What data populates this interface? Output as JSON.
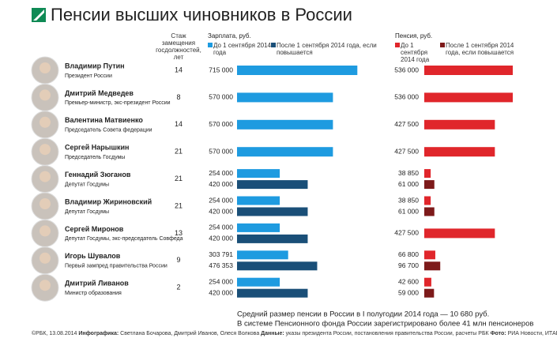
{
  "title": "Пенсии высших чиновников в России",
  "columns": {
    "tenure": "Стаж замещения госдолжностей, лет",
    "salary": "Зарплата, руб.",
    "pension": "Пенсия, руб."
  },
  "legend": {
    "salary": [
      {
        "name": "До 1 сентября 2014 года",
        "color": "#1e9be0"
      },
      {
        "name": "После 1 сентября 2014 года, если повышается",
        "color": "#1a4f78"
      }
    ],
    "pension": [
      {
        "name": "До 1 сентября 2014 года",
        "color": "#e0262b"
      },
      {
        "name": "После 1 сентября 2014 года, если повышается",
        "color": "#7d1a1a"
      }
    ]
  },
  "rows": [
    {
      "name": "Владимир Путин",
      "position": "Президент России",
      "tenure": 14,
      "salary": [
        715000
      ],
      "salary_labels": [
        "715 000"
      ],
      "pension": [
        536000
      ],
      "pension_labels": [
        "536 000"
      ]
    },
    {
      "name": "Дмитрий Медведев",
      "position": "Премьер-министр, экс-президент России",
      "tenure": 8,
      "salary": [
        570000
      ],
      "salary_labels": [
        "570 000"
      ],
      "pension": [
        536000
      ],
      "pension_labels": [
        "536 000"
      ]
    },
    {
      "name": "Валентина Матвиенко",
      "position": "Председатель Совета федерации",
      "tenure": 14,
      "salary": [
        570000
      ],
      "salary_labels": [
        "570 000"
      ],
      "pension": [
        427500
      ],
      "pension_labels": [
        "427 500"
      ]
    },
    {
      "name": "Сергей Нарышкин",
      "position": "Председатель Госдумы",
      "tenure": 21,
      "salary": [
        570000
      ],
      "salary_labels": [
        "570 000"
      ],
      "pension": [
        427500
      ],
      "pension_labels": [
        "427 500"
      ]
    },
    {
      "name": "Геннадий Зюганов",
      "position": "Депутат Госдумы",
      "tenure": 21,
      "salary": [
        254000,
        420000
      ],
      "salary_labels": [
        "254 000",
        "420 000"
      ],
      "pension": [
        38850,
        61000
      ],
      "pension_labels": [
        "38 850",
        "61 000"
      ]
    },
    {
      "name": "Владимир Жириновский",
      "position": "Депутат Госдумы",
      "tenure": 21,
      "salary": [
        254000,
        420000
      ],
      "salary_labels": [
        "254 000",
        "420 000"
      ],
      "pension": [
        38850,
        61000
      ],
      "pension_labels": [
        "38 850",
        "61 000"
      ]
    },
    {
      "name": "Сергей Миронов",
      "position": "Депутат Госдумы, экс-председатель Совфеда",
      "tenure": 13,
      "salary": [
        254000,
        420000
      ],
      "salary_labels": [
        "254 000",
        "420 000"
      ],
      "pension": [
        427500
      ],
      "pension_labels": [
        "427 500"
      ]
    },
    {
      "name": "Игорь Шувалов",
      "position": "Первый зампред правительства России",
      "tenure": 9,
      "salary": [
        303791,
        476353
      ],
      "salary_labels": [
        "303 791",
        "476 353"
      ],
      "pension": [
        66800,
        96700
      ],
      "pension_labels": [
        "66 800",
        "96 700"
      ]
    },
    {
      "name": "Дмитрий Ливанов",
      "position": "Министр образования",
      "tenure": 2,
      "salary": [
        254000,
        420000
      ],
      "salary_labels": [
        "254 000",
        "420 000"
      ],
      "pension": [
        42600,
        59000
      ],
      "pension_labels": [
        "42 600",
        "59 000"
      ]
    }
  ],
  "footnote": [
    "Средний размер пенсии в России в I полугодии 2014 года — 10 680 руб.",
    "В системе Пенсионного фонда России зарегистрировано более 41 млн пенсионеров"
  ],
  "credits": [
    "©РБК, 13.08.2014",
    "Инфографика:",
    "Светлана Бочарова, Дмитрий Иванов, Олеся Волкова",
    "Данные:",
    "указы президента России, постановления правительства России, расчеты РБК",
    "Фото:",
    "РИА Новости, ИТАР-ТАСС"
  ]
}
